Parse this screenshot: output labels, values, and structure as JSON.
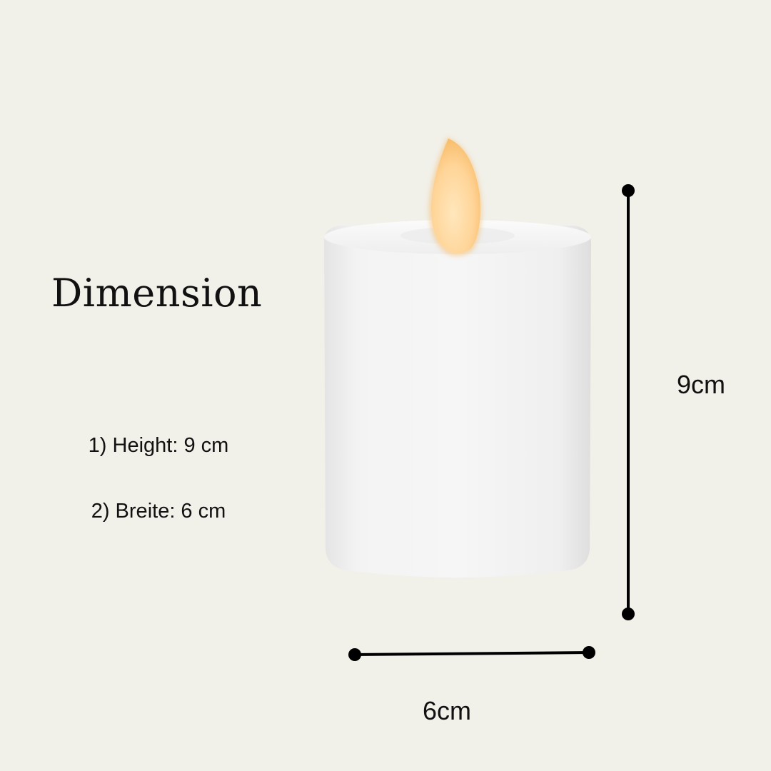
{
  "heading": "Dimension",
  "specs": {
    "height": "1) Height: 9 cm",
    "width": "2) Breite: 6 cm"
  },
  "dimensions": {
    "height_label": "9cm",
    "width_label": "6cm"
  },
  "colors": {
    "background": "#f1f0e9",
    "candle": "#f4f4f4",
    "flame": "#ffd9a0",
    "line": "#000000"
  }
}
